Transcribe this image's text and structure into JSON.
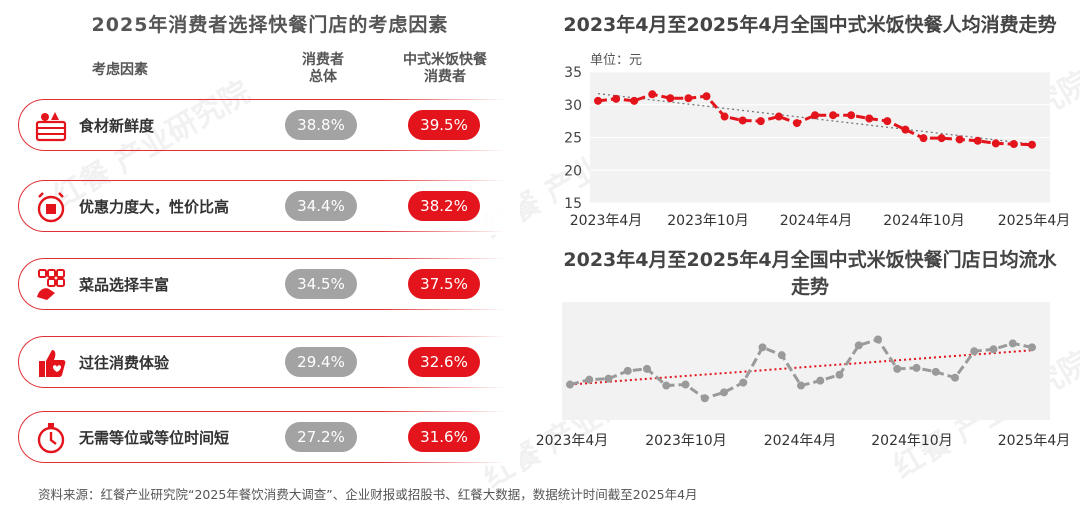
{
  "left": {
    "title": "2025年消费者选择快餐门店的考虑因素",
    "col_factor": "考虑因素",
    "col_total": "消费者\n总体",
    "col_rice": "中式米饭快餐\n消费者",
    "rows": [
      {
        "label": "食材新鲜度",
        "total": "38.8%",
        "rice": "39.5%",
        "icon": "food-basket-icon"
      },
      {
        "label": "优惠力度大，性价比高",
        "total": "34.4%",
        "rice": "38.2%",
        "icon": "discount-clock-icon"
      },
      {
        "label": "菜品选择丰富",
        "total": "34.5%",
        "rice": "37.5%",
        "icon": "menu-hand-icon"
      },
      {
        "label": "过往消费体验",
        "total": "29.4%",
        "rice": "32.6%",
        "icon": "thumbs-up-icon"
      },
      {
        "label": "无需等位或等位时间短",
        "total": "27.2%",
        "rice": "31.6%",
        "icon": "timer-icon"
      }
    ]
  },
  "chart_data": [
    {
      "type": "line",
      "title": "2023年4月至2025年4月全国中式米饭快餐人均消费走势",
      "unit_label": "单位：元",
      "ylim": [
        15,
        35
      ],
      "yticks": [
        "35",
        "30",
        "25",
        "20",
        "15"
      ],
      "xtick_labels": [
        "2023年4月",
        "2023年10月",
        "2024年4月",
        "2024年10月",
        "2025年4月"
      ],
      "x": [
        "2023-04",
        "2023-05",
        "2023-06",
        "2023-07",
        "2023-08",
        "2023-09",
        "2023-10",
        "2023-11",
        "2023-12",
        "2024-01",
        "2024-02",
        "2024-03",
        "2024-04",
        "2024-05",
        "2024-06",
        "2024-07",
        "2024-08",
        "2024-09",
        "2024-10",
        "2024-11",
        "2024-12",
        "2025-01",
        "2025-02",
        "2025-03",
        "2025-04"
      ],
      "series": [
        {
          "values": [
            30.6,
            30.9,
            30.6,
            31.6,
            31.0,
            31.0,
            31.3,
            28.2,
            27.6,
            27.5,
            28.2,
            27.2,
            28.4,
            28.4,
            28.4,
            27.9,
            27.5,
            26.2,
            24.9,
            24.9,
            24.7,
            24.5,
            24.1,
            24.0,
            23.9
          ],
          "color": "#e3141b"
        }
      ],
      "trendline": {
        "from": 31.7,
        "to": 24.0,
        "color": "#777777"
      }
    },
    {
      "type": "line",
      "title": "2023年4月至2025年4月全国中式米饭快餐门店日均流水走势",
      "xtick_labels": [
        "2023年4月",
        "2023年10月",
        "2024年4月",
        "2024年10月",
        "2025年4月"
      ],
      "x": [
        "2023-04",
        "2023-05",
        "2023-06",
        "2023-07",
        "2023-08",
        "2023-09",
        "2023-10",
        "2023-11",
        "2023-12",
        "2024-01",
        "2024-02",
        "2024-03",
        "2024-04",
        "2024-05",
        "2024-06",
        "2024-07",
        "2024-08",
        "2024-09",
        "2024-10",
        "2024-11",
        "2024-12",
        "2025-01",
        "2025-02",
        "2025-03",
        "2025-04"
      ],
      "series": [
        {
          "values": [
            0.28,
            0.33,
            0.34,
            0.42,
            0.44,
            0.27,
            0.28,
            0.14,
            0.2,
            0.3,
            0.66,
            0.58,
            0.27,
            0.32,
            0.38,
            0.68,
            0.74,
            0.44,
            0.45,
            0.41,
            0.35,
            0.62,
            0.64,
            0.7,
            0.66
          ],
          "color": "#9a9a9a"
        }
      ],
      "trendline": {
        "from": 0.28,
        "to": 0.63,
        "color": "#e3141b"
      }
    }
  ],
  "footer": "资料来源：红餐产业研究院“2025年餐饮消费大调查”、企业财报或招股书、红餐大数据，数据统计时间截至2025年4月",
  "watermark": "红餐 产业研究院",
  "colors": {
    "accent": "#e3141b",
    "grey": "#a3a3a3"
  }
}
